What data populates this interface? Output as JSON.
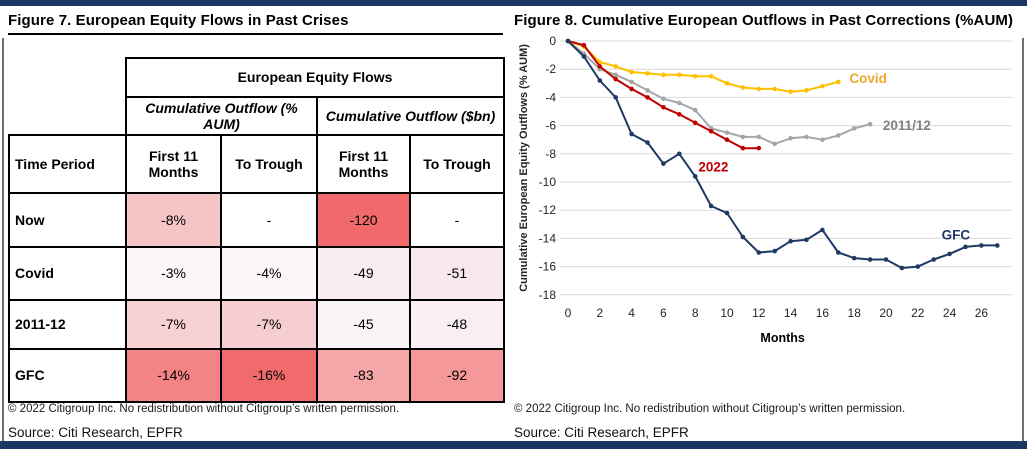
{
  "left_panel": {
    "title": "Figure 7. European Equity Flows in Past Crises",
    "copyright": "© 2022 Citigroup Inc. No redistribution without Citigroup’s written permission.",
    "source": "Source: Citi Research, EPFR",
    "table": {
      "main_header": "European Equity Flows",
      "group_headers": [
        "Cumulative Outflow (% AUM)",
        "Cumulative Outflow ($bn)"
      ],
      "column_headers": [
        "Time Period",
        "First 11 Months",
        "To Trough",
        "First 11 Months",
        "To Trough"
      ],
      "rows": [
        {
          "label": "Now",
          "cells": [
            {
              "v": "-8%",
              "bg": "#f5c5c6"
            },
            {
              "v": "-",
              "bg": "#ffffff"
            },
            {
              "v": "-120",
              "bg": "#f1696b"
            },
            {
              "v": "-",
              "bg": "#ffffff"
            }
          ]
        },
        {
          "label": "Covid",
          "cells": [
            {
              "v": "-3%",
              "bg": "#faf6f9"
            },
            {
              "v": "-4%",
              "bg": "#faf6f9"
            },
            {
              "v": "-49",
              "bg": "#f9edf0"
            },
            {
              "v": "-51",
              "bg": "#f8e8eb"
            }
          ]
        },
        {
          "label": "2011-12",
          "cells": [
            {
              "v": "-7%",
              "bg": "#f7d2d4"
            },
            {
              "v": "-7%",
              "bg": "#f6cdd0"
            },
            {
              "v": "-45",
              "bg": "#f9f4f7"
            },
            {
              "v": "-48",
              "bg": "#f9eff2"
            }
          ]
        },
        {
          "label": "GFC",
          "cells": [
            {
              "v": "-14%",
              "bg": "#f48384"
            },
            {
              "v": "-16%",
              "bg": "#f26b6c"
            },
            {
              "v": "-83",
              "bg": "#f5a6a7"
            },
            {
              "v": "-92",
              "bg": "#f49899"
            }
          ]
        }
      ]
    }
  },
  "right_panel": {
    "title": "Figure 8. Cumulative European Outflows in Past Corrections (%AUM)",
    "copyright": "© 2022 Citigroup Inc. No redistribution without Citigroup’s written permission.",
    "source": "Source: Citi Research, EPFR"
  },
  "chart_data": {
    "type": "line",
    "title": "Figure 8. Cumulative European Outflows in Past Corrections (%AUM)",
    "xlabel": "Months",
    "ylabel": "Cumulative European Equity Outflows (% AUM)",
    "x_start": 0,
    "x_step": 1,
    "xlim": [
      0,
      27.5
    ],
    "ylim": [
      -18,
      0
    ],
    "x_ticks": [
      0,
      2,
      4,
      6,
      8,
      10,
      12,
      14,
      16,
      18,
      20,
      22,
      24,
      26
    ],
    "y_ticks": [
      0,
      -2,
      -4,
      -6,
      -8,
      -10,
      -12,
      -14,
      -16,
      -18
    ],
    "grid": "horizontal",
    "gridline_color": "#d9d9d9",
    "legend_position": "inline-labels",
    "series": [
      {
        "name": "2011/12",
        "color": "#a6a6a6",
        "label_color": "#808080",
        "label_pos": {
          "m": 19.8,
          "v": -6.0
        },
        "values": [
          0,
          -0.9,
          -2.0,
          -2.4,
          -2.9,
          -3.5,
          -4.1,
          -4.4,
          -4.9,
          -6.2,
          -6.5,
          -6.8,
          -6.8,
          -7.3,
          -6.9,
          -6.8,
          -7.0,
          -6.7,
          -6.2,
          -5.9
        ]
      },
      {
        "name": "Covid",
        "color": "#ffc000",
        "label_color": "#eda832",
        "label_pos": {
          "m": 17.7,
          "v": -2.65
        },
        "values": [
          0,
          -0.4,
          -1.5,
          -1.8,
          -2.2,
          -2.3,
          -2.4,
          -2.4,
          -2.5,
          -2.5,
          -3.0,
          -3.3,
          -3.4,
          -3.4,
          -3.6,
          -3.5,
          -3.2,
          -2.9
        ]
      },
      {
        "name": "2022",
        "color": "#c00000",
        "label_color": "#c00000",
        "label_pos": {
          "m": 8.2,
          "v": -8.95
        },
        "values": [
          0,
          -0.3,
          -1.8,
          -2.7,
          -3.4,
          -4.0,
          -4.7,
          -5.2,
          -5.8,
          -6.4,
          -7.0,
          -7.6,
          -7.6
        ]
      },
      {
        "name": "GFC",
        "color": "#1f3864",
        "label_color": "#1f3864",
        "label_pos": {
          "m": 23.5,
          "v": -13.75
        },
        "values": [
          0,
          -1.1,
          -2.8,
          -4.0,
          -6.6,
          -7.2,
          -8.7,
          -8.0,
          -9.6,
          -11.7,
          -12.2,
          -13.9,
          -15.0,
          -14.9,
          -14.2,
          -14.1,
          -13.4,
          -15.0,
          -15.4,
          -15.5,
          -15.5,
          -16.1,
          -16.0,
          -15.5,
          -15.1,
          -14.6,
          -14.5,
          -14.5
        ]
      }
    ]
  }
}
